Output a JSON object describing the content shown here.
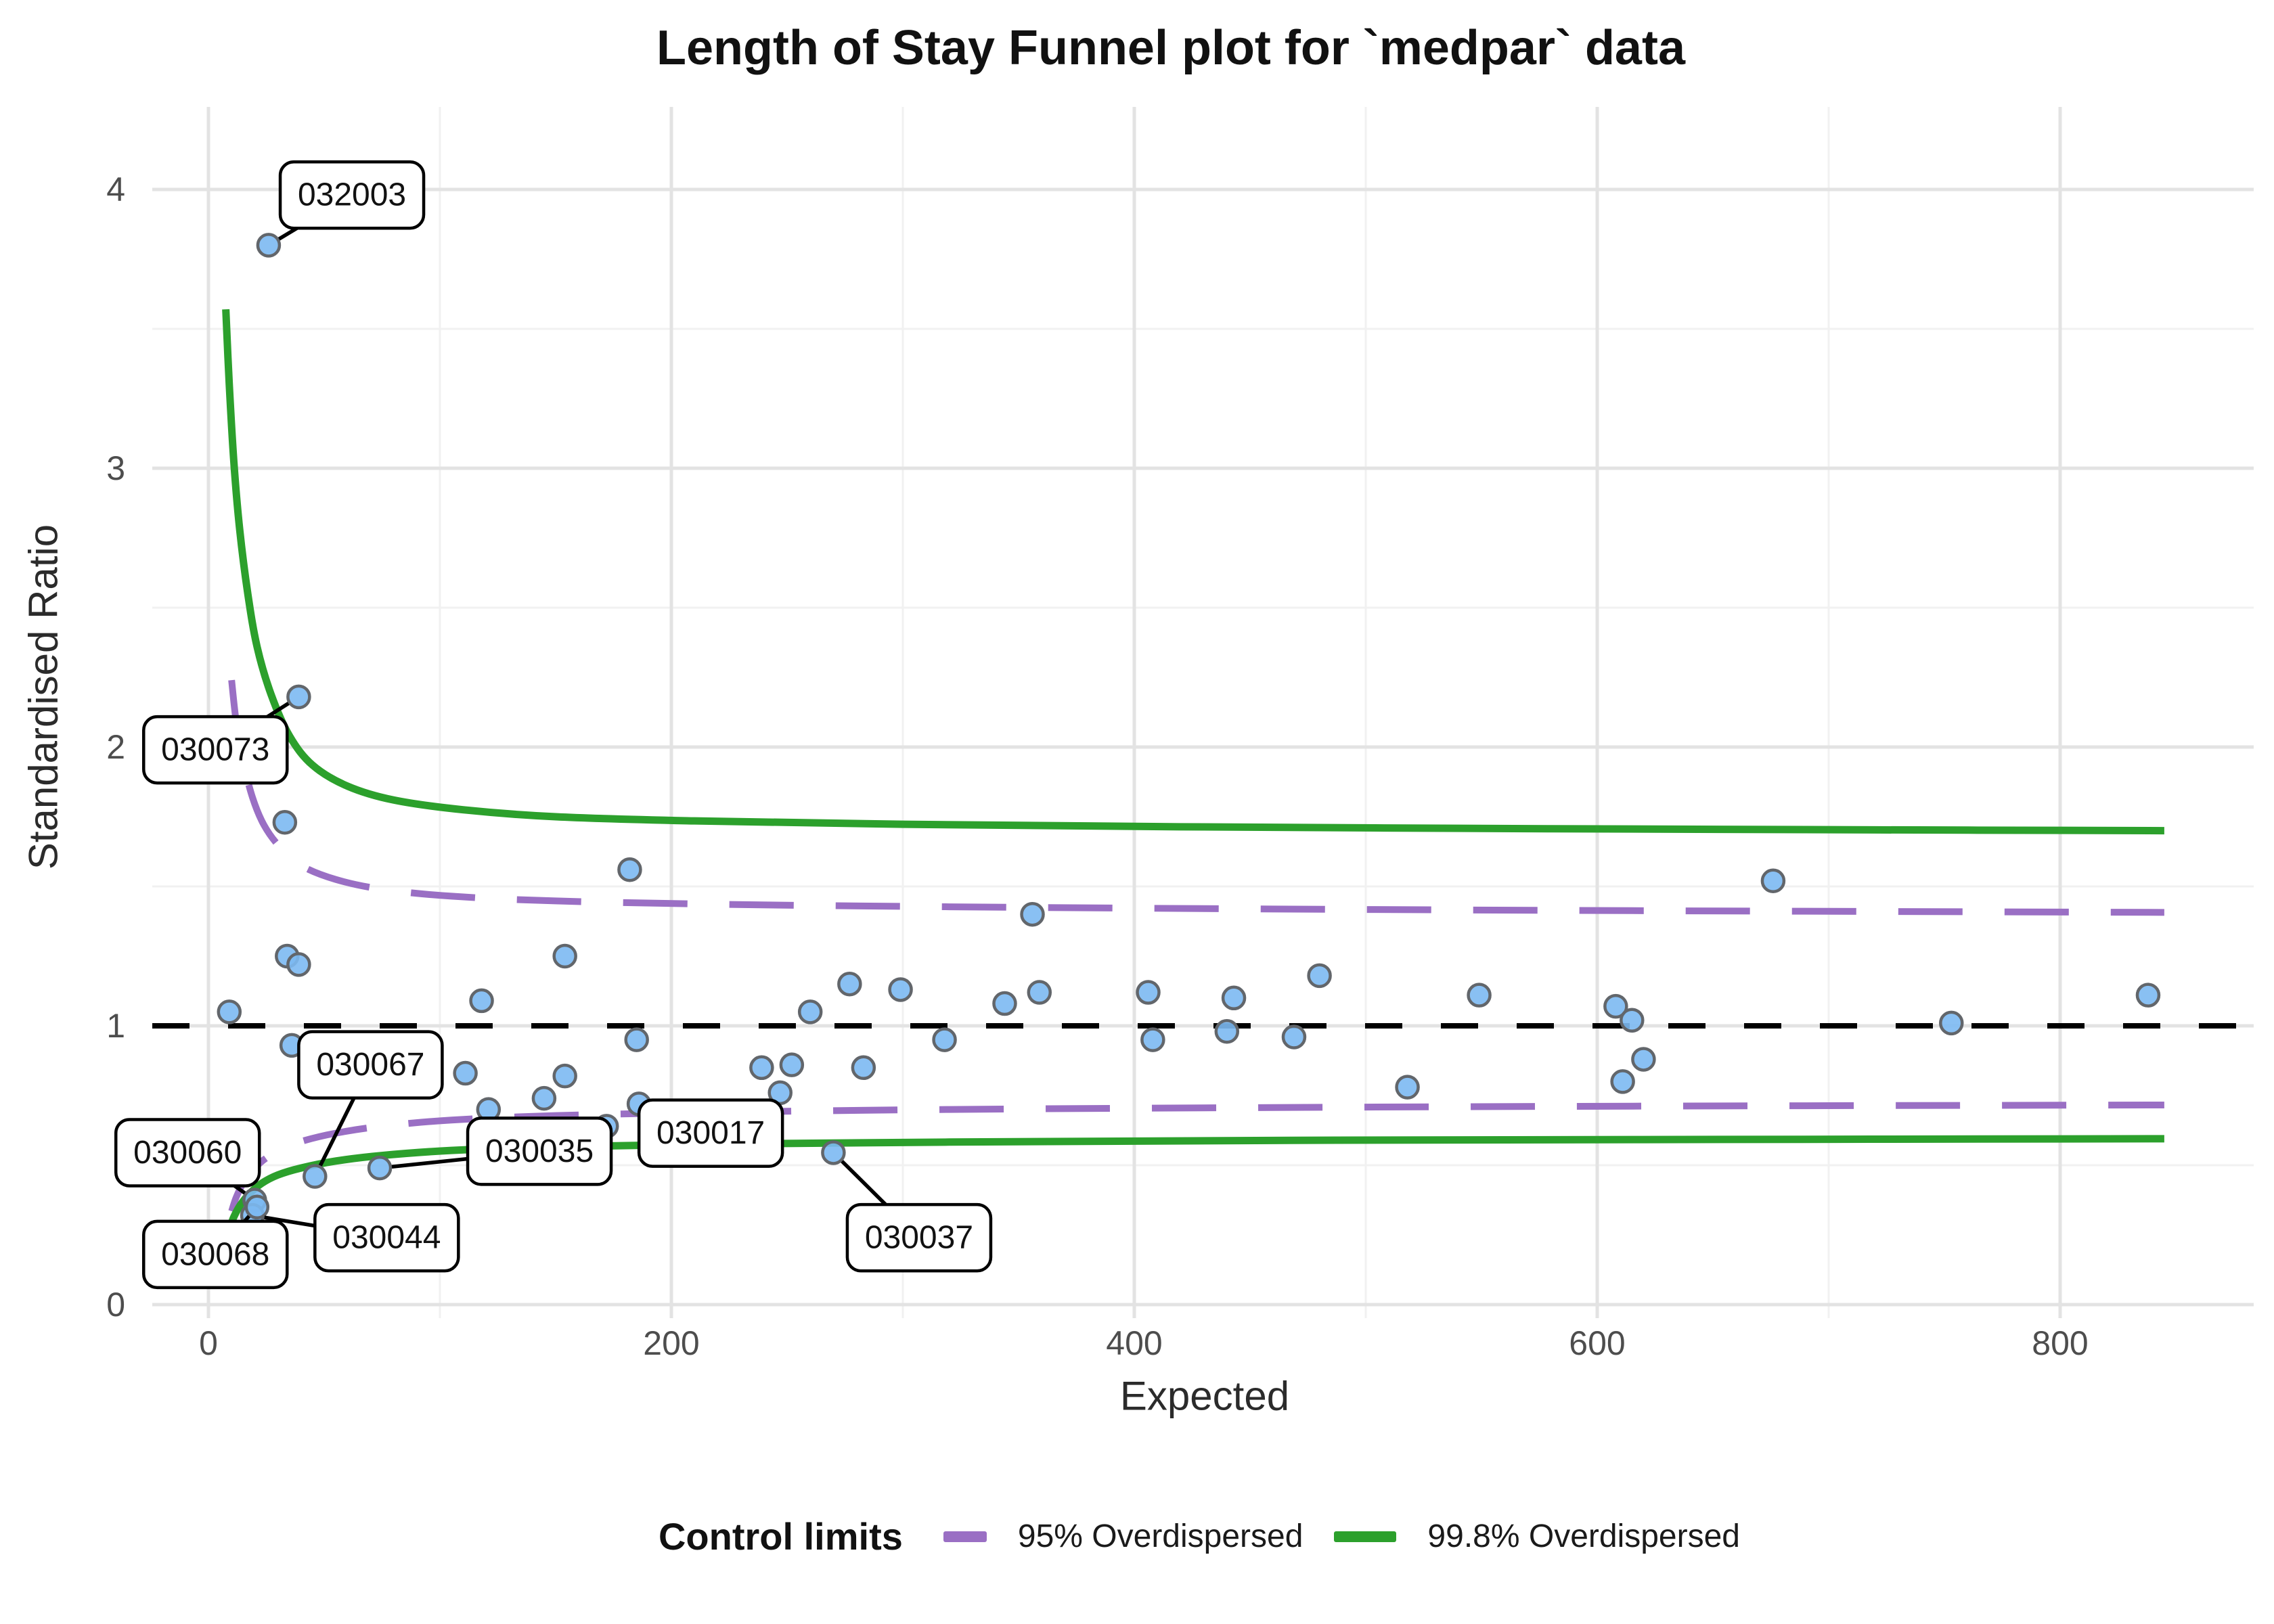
{
  "title": "Length of Stay Funnel plot for `medpar` data",
  "axes": {
    "x_label": "Expected",
    "y_label": "Standardised Ratio",
    "x_ticks": [
      0,
      200,
      400,
      600,
      800
    ],
    "y_ticks": [
      0,
      1,
      2,
      3,
      4
    ],
    "x_minor": [
      100,
      300,
      500,
      700
    ],
    "y_minor": [
      0.5,
      1.5,
      2.5,
      3.5
    ]
  },
  "legend": {
    "title": "Control limits",
    "items": [
      {
        "label": "95% Overdispersed",
        "color": "#9a6fc4",
        "style": "dashed"
      },
      {
        "label": "99.8% Overdispersed",
        "color": "#2ca02c",
        "style": "solid"
      }
    ]
  },
  "colors": {
    "point_fill": "#7cb9f2",
    "point_stroke": "#62666b",
    "purple": "#9a6fc4",
    "green": "#2ca02c",
    "reference": "#000000",
    "grid_major": "#e3e3e3",
    "grid_minor": "#f1f1f1",
    "tick_text": "#4d4d4d",
    "label_box_fill": "#ffffff",
    "label_box_stroke": "#000000"
  },
  "chart_data": {
    "type": "scatter",
    "title": "Length of Stay Funnel plot for `medpar` data",
    "xlabel": "Expected",
    "ylabel": "Standardised Ratio",
    "xlim": [
      -24,
      884
    ],
    "ylim": [
      -0.06,
      4.3
    ],
    "grid": "on",
    "legend_position": "bottom",
    "reference_line_y": 1,
    "points": [
      [
        9,
        1.05
      ],
      [
        33,
        1.73
      ],
      [
        34,
        1.25
      ],
      [
        36,
        0.93
      ],
      [
        39,
        1.22
      ],
      [
        111,
        0.83
      ],
      [
        118,
        1.09
      ],
      [
        121,
        0.7
      ],
      [
        145,
        0.74
      ],
      [
        154,
        0.82
      ],
      [
        154,
        1.25
      ],
      [
        172,
        0.64
      ],
      [
        182,
        1.56
      ],
      [
        185,
        0.95
      ],
      [
        186,
        0.72
      ],
      [
        239,
        0.85
      ],
      [
        247,
        0.76
      ],
      [
        252,
        0.86
      ],
      [
        260,
        1.05
      ],
      [
        277,
        1.15
      ],
      [
        283,
        0.85
      ],
      [
        299,
        1.13
      ],
      [
        318,
        0.95
      ],
      [
        344,
        1.08
      ],
      [
        356,
        1.4
      ],
      [
        359,
        1.12
      ],
      [
        406,
        1.12
      ],
      [
        408,
        0.95
      ],
      [
        440,
        0.98
      ],
      [
        443,
        1.1
      ],
      [
        469,
        0.96
      ],
      [
        480,
        1.18
      ],
      [
        518,
        0.78
      ],
      [
        549,
        1.11
      ],
      [
        608,
        1.07
      ],
      [
        611,
        0.8
      ],
      [
        615,
        1.02
      ],
      [
        620,
        0.88
      ],
      [
        676,
        1.52
      ],
      [
        753,
        1.01
      ],
      [
        838,
        1.11
      ]
    ],
    "labeled_points": [
      {
        "label": "032003",
        "x": 26,
        "y": 3.8,
        "box_x": 62,
        "box_y": 3.98
      },
      {
        "label": "030073",
        "x": 39,
        "y": 2.18,
        "box_x": 3,
        "box_y": 1.99
      },
      {
        "label": "030067",
        "x": 46,
        "y": 0.46,
        "box_x": 70,
        "box_y": 0.86
      },
      {
        "label": "030035",
        "x": 74,
        "y": 0.49,
        "box_x": 143,
        "box_y": 0.55
      },
      {
        "label": "030060",
        "x": 20,
        "y": 0.375,
        "box_x": -9,
        "box_y": 0.545
      },
      {
        "label": "030044",
        "x": 19,
        "y": 0.32,
        "box_x": 77,
        "box_y": 0.24
      },
      {
        "label": "030068",
        "x": 21,
        "y": 0.35,
        "box_x": 3,
        "box_y": 0.18
      },
      {
        "label": "030017",
        "x": 242,
        "y": 0.545,
        "box_x": 217,
        "box_y": 0.615
      },
      {
        "label": "030037",
        "x": 270,
        "y": 0.545,
        "box_x": 307,
        "box_y": 0.24
      }
    ],
    "series": [
      {
        "name": "99.8% Overdispersed upper",
        "color": "#2ca02c",
        "style": "solid",
        "values": [
          [
            7.5,
            3.57
          ],
          [
            9,
            3.3
          ],
          [
            11,
            3.02
          ],
          [
            13.5,
            2.78
          ],
          [
            17,
            2.55
          ],
          [
            21,
            2.36
          ],
          [
            27,
            2.19
          ],
          [
            35,
            2.04
          ],
          [
            45,
            1.935
          ],
          [
            60,
            1.86
          ],
          [
            80,
            1.81
          ],
          [
            110,
            1.775
          ],
          [
            150,
            1.75
          ],
          [
            210,
            1.735
          ],
          [
            300,
            1.723
          ],
          [
            420,
            1.714
          ],
          [
            580,
            1.707
          ],
          [
            720,
            1.703
          ],
          [
            845,
            1.7
          ]
        ]
      },
      {
        "name": "95% Overdispersed upper",
        "color": "#9a6fc4",
        "style": "dashed",
        "values": [
          [
            10,
            2.24
          ],
          [
            12,
            2.09
          ],
          [
            15,
            1.95
          ],
          [
            19,
            1.82
          ],
          [
            24,
            1.72
          ],
          [
            31,
            1.64
          ],
          [
            40,
            1.575
          ],
          [
            55,
            1.525
          ],
          [
            75,
            1.49
          ],
          [
            105,
            1.465
          ],
          [
            150,
            1.448
          ],
          [
            220,
            1.436
          ],
          [
            320,
            1.427
          ],
          [
            460,
            1.419
          ],
          [
            620,
            1.413
          ],
          [
            845,
            1.407
          ]
        ]
      },
      {
        "name": "95% Overdispersed lower",
        "color": "#9a6fc4",
        "style": "dashed",
        "values": [
          [
            10,
            0.335
          ],
          [
            12,
            0.385
          ],
          [
            15,
            0.435
          ],
          [
            19,
            0.48
          ],
          [
            24,
            0.52
          ],
          [
            31,
            0.555
          ],
          [
            40,
            0.585
          ],
          [
            55,
            0.615
          ],
          [
            75,
            0.64
          ],
          [
            105,
            0.662
          ],
          [
            150,
            0.678
          ],
          [
            220,
            0.69
          ],
          [
            320,
            0.7
          ],
          [
            460,
            0.707
          ],
          [
            620,
            0.712
          ],
          [
            845,
            0.716
          ]
        ]
      },
      {
        "name": "99.8% Overdispersed lower",
        "color": "#2ca02c",
        "style": "solid",
        "values": [
          [
            9,
            0.27
          ],
          [
            11,
            0.315
          ],
          [
            14,
            0.36
          ],
          [
            18,
            0.4
          ],
          [
            23,
            0.435
          ],
          [
            30,
            0.465
          ],
          [
            40,
            0.49
          ],
          [
            55,
            0.515
          ],
          [
            75,
            0.535
          ],
          [
            105,
            0.553
          ],
          [
            150,
            0.566
          ],
          [
            220,
            0.576
          ],
          [
            320,
            0.583
          ],
          [
            460,
            0.589
          ],
          [
            620,
            0.592
          ],
          [
            845,
            0.595
          ]
        ]
      }
    ]
  }
}
